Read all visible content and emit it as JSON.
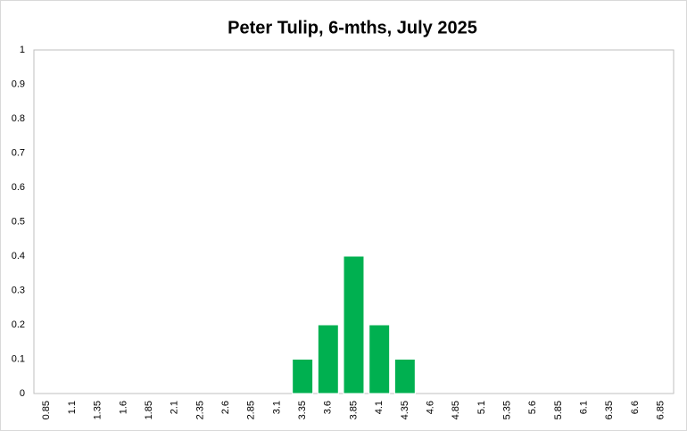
{
  "chart_data": {
    "type": "bar",
    "title": "Peter Tulip, 6-mths, July 2025",
    "categories": [
      "0.85",
      "1.1",
      "1.35",
      "1.6",
      "1.85",
      "2.1",
      "2.35",
      "2.6",
      "2.85",
      "3.1",
      "3.35",
      "3.6",
      "3.85",
      "4.1",
      "4.35",
      "4.6",
      "4.85",
      "5.1",
      "5.35",
      "5.6",
      "5.85",
      "6.1",
      "6.35",
      "6.6",
      "6.85"
    ],
    "values": [
      0,
      0,
      0,
      0,
      0,
      0,
      0,
      0,
      0,
      0,
      0.1,
      0.2,
      0.4,
      0.2,
      0.1,
      0,
      0,
      0,
      0,
      0,
      0,
      0,
      0,
      0,
      0
    ],
    "color": "#00b050",
    "ylim": [
      0,
      1
    ],
    "yticks": [
      0,
      0.1,
      0.2,
      0.3,
      0.4,
      0.5,
      0.6,
      0.7,
      0.8,
      0.9,
      1
    ],
    "grid": false
  }
}
